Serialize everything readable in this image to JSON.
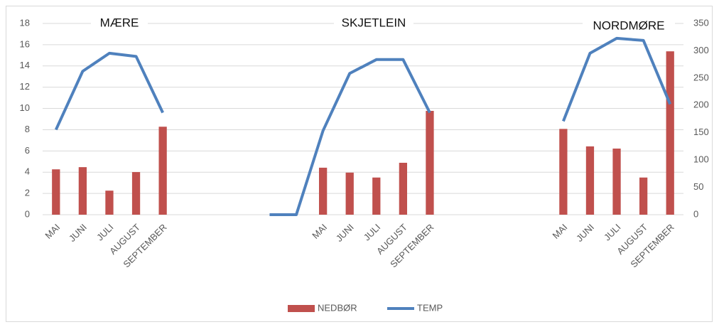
{
  "chart_data": {
    "type": "bar_line",
    "annotations": [
      "MÆRE",
      "SKJETLEIN",
      "NORDMØRE"
    ],
    "categories": [
      "MAI",
      "JUNI",
      "JULI",
      "AUGUST",
      "SEPTEMBER",
      null,
      null,
      null,
      null,
      null,
      "MAI",
      "JUNI",
      "JULI",
      "AUGUST",
      "SEPTEMBER",
      null,
      null,
      null,
      null,
      "MAI",
      "JUNI",
      "JULI",
      "AUGUST",
      "SEPTEMBER"
    ],
    "series": [
      {
        "name": "NEDBØR",
        "type": "bar",
        "axis": "y2",
        "color": "#c0504d",
        "values": [
          83,
          87,
          44,
          78,
          161,
          null,
          null,
          null,
          null,
          null,
          86,
          77,
          68,
          95,
          190,
          null,
          null,
          null,
          null,
          157,
          125,
          121,
          68,
          299
        ]
      },
      {
        "name": "TEMP",
        "type": "line",
        "color": "#4f81bd",
        "values": [
          8.0,
          13.5,
          15.2,
          14.9,
          9.6,
          null,
          null,
          null,
          0,
          0,
          7.9,
          13.3,
          14.6,
          14.6,
          9.6,
          null,
          null,
          null,
          null,
          8.8,
          15.2,
          16.6,
          16.4,
          10.4
        ]
      }
    ],
    "ylim": [
      0,
      18
    ],
    "yticks": [
      0,
      2,
      4,
      6,
      8,
      10,
      12,
      14,
      16,
      18
    ],
    "y2lim": [
      0,
      350
    ],
    "y2ticks": [
      0,
      50,
      100,
      150,
      200,
      250,
      300,
      350
    ],
    "grid": true,
    "legend": "bottom"
  }
}
